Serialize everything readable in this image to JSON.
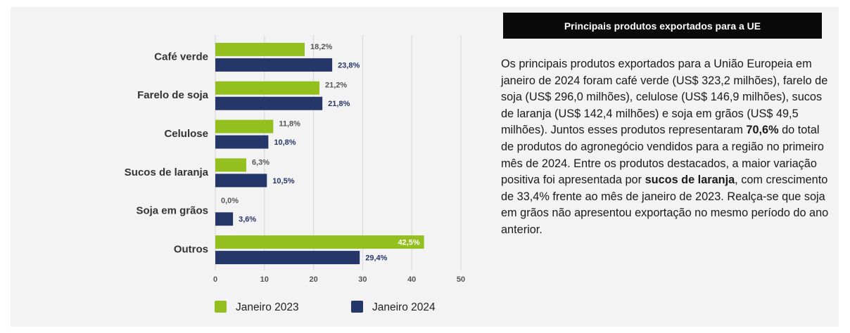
{
  "chart_data": {
    "type": "hbar",
    "categories": [
      "Café verde",
      "Farelo de soja",
      "Celulose",
      "Sucos de laranja",
      "Soja em grãos",
      "Outros"
    ],
    "series": [
      {
        "name": "Janeiro 2023",
        "color": "#93c01f",
        "values": [
          18.2,
          21.2,
          11.8,
          6.3,
          0.0,
          42.5
        ],
        "value_labels": [
          "18,2%",
          "21,2%",
          "11,8%",
          "6,3%",
          "0,0%",
          "42,5%"
        ]
      },
      {
        "name": "Janeiro 2024",
        "color": "#253668",
        "values": [
          23.8,
          21.8,
          10.8,
          10.5,
          3.6,
          29.4
        ],
        "value_labels": [
          "23,8%",
          "21,8%",
          "10,8%",
          "10,5%",
          "3,6%",
          "29,4%"
        ]
      }
    ],
    "xlim": [
      0,
      50
    ],
    "xticks": [
      0,
      10,
      20,
      30,
      40,
      50
    ],
    "grid": true
  },
  "text_panel": {
    "title": "Principais produtos exportados para a UE",
    "paragraph": [
      {
        "text": "Os principais produtos exportados para a União Europeia em janeiro de 2024 foram café verde (US$ 323,2 milhões), farelo de soja (US$ 296,0 milhões), celulose (US$ 146,9 milhões), sucos de laranja (US$ 142,4 milhões) e soja em grãos (US$ 49,5 milhões). Juntos esses produtos representaram ",
        "bold": false
      },
      {
        "text": "70,6%",
        "bold": true
      },
      {
        "text": " do total de produtos do agronegócio vendidos para a região no primeiro mês de 2024. Entre os produtos destacados, a maior variação positiva foi apresentada por ",
        "bold": false
      },
      {
        "text": "sucos de laranja",
        "bold": true
      },
      {
        "text": ", com crescimento de 33,4% frente ao mês de janeiro de 2023. Realça-se que soja em grãos não apresentou exportação no mesmo período do ano anterior.",
        "bold": false
      }
    ]
  }
}
